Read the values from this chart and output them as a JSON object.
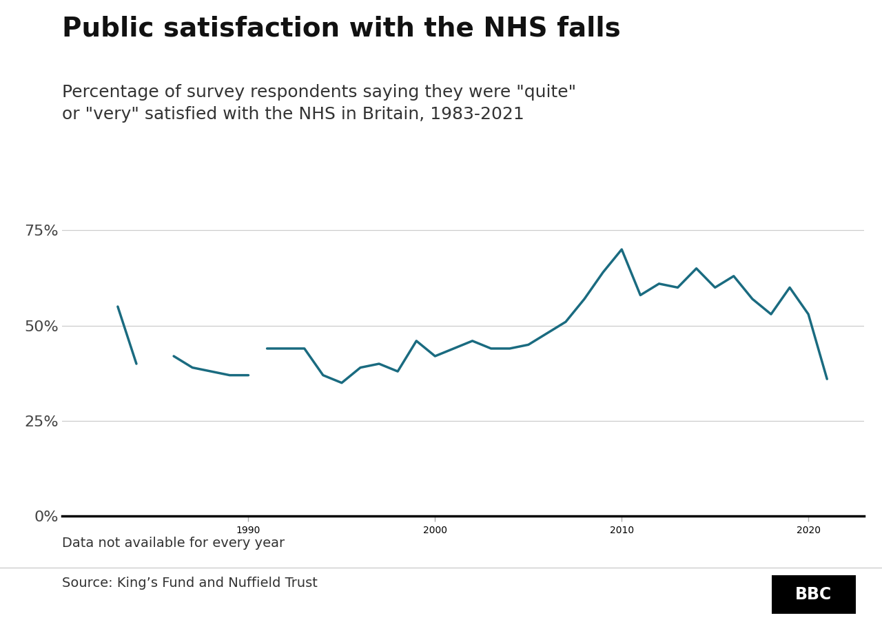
{
  "title": "Public satisfaction with the NHS falls",
  "subtitle": "Percentage of survey respondents saying they were \"quite\"\nor \"very\" satisfied with the NHS in Britain, 1983-2021",
  "footnote": "Data not available for every year",
  "source": "Source: King’s Fund and Nuffield Trust",
  "line_color": "#1a6b80",
  "line_width": 2.5,
  "background_color": "#ffffff",
  "segments": [
    {
      "years": [
        1983,
        1984
      ],
      "values": [
        55,
        40
      ]
    },
    {
      "years": [
        1986,
        1987,
        1989,
        1990
      ],
      "values": [
        42,
        39,
        37,
        37
      ]
    },
    {
      "years": [
        1991,
        1993,
        1994,
        1995,
        1996,
        1997,
        1998,
        1999,
        2000,
        2001,
        2002,
        2003,
        2004,
        2005,
        2006,
        2007,
        2008,
        2009,
        2010,
        2011,
        2012,
        2013,
        2014,
        2015,
        2016,
        2017,
        2018,
        2019,
        2020,
        2021
      ],
      "values": [
        44,
        44,
        37,
        35,
        39,
        40,
        38,
        46,
        42,
        44,
        46,
        44,
        44,
        45,
        48,
        51,
        57,
        64,
        70,
        58,
        61,
        60,
        65,
        60,
        63,
        57,
        53,
        60,
        53,
        36
      ]
    }
  ],
  "yticks": [
    0,
    25,
    50,
    75
  ],
  "ylim": [
    -2,
    85
  ],
  "xlim": [
    1980,
    2023
  ],
  "xticks": [
    1990,
    2000,
    2010,
    2020
  ],
  "title_fontsize": 28,
  "subtitle_fontsize": 18,
  "tick_fontsize": 16,
  "footnote_fontsize": 14,
  "source_fontsize": 14
}
